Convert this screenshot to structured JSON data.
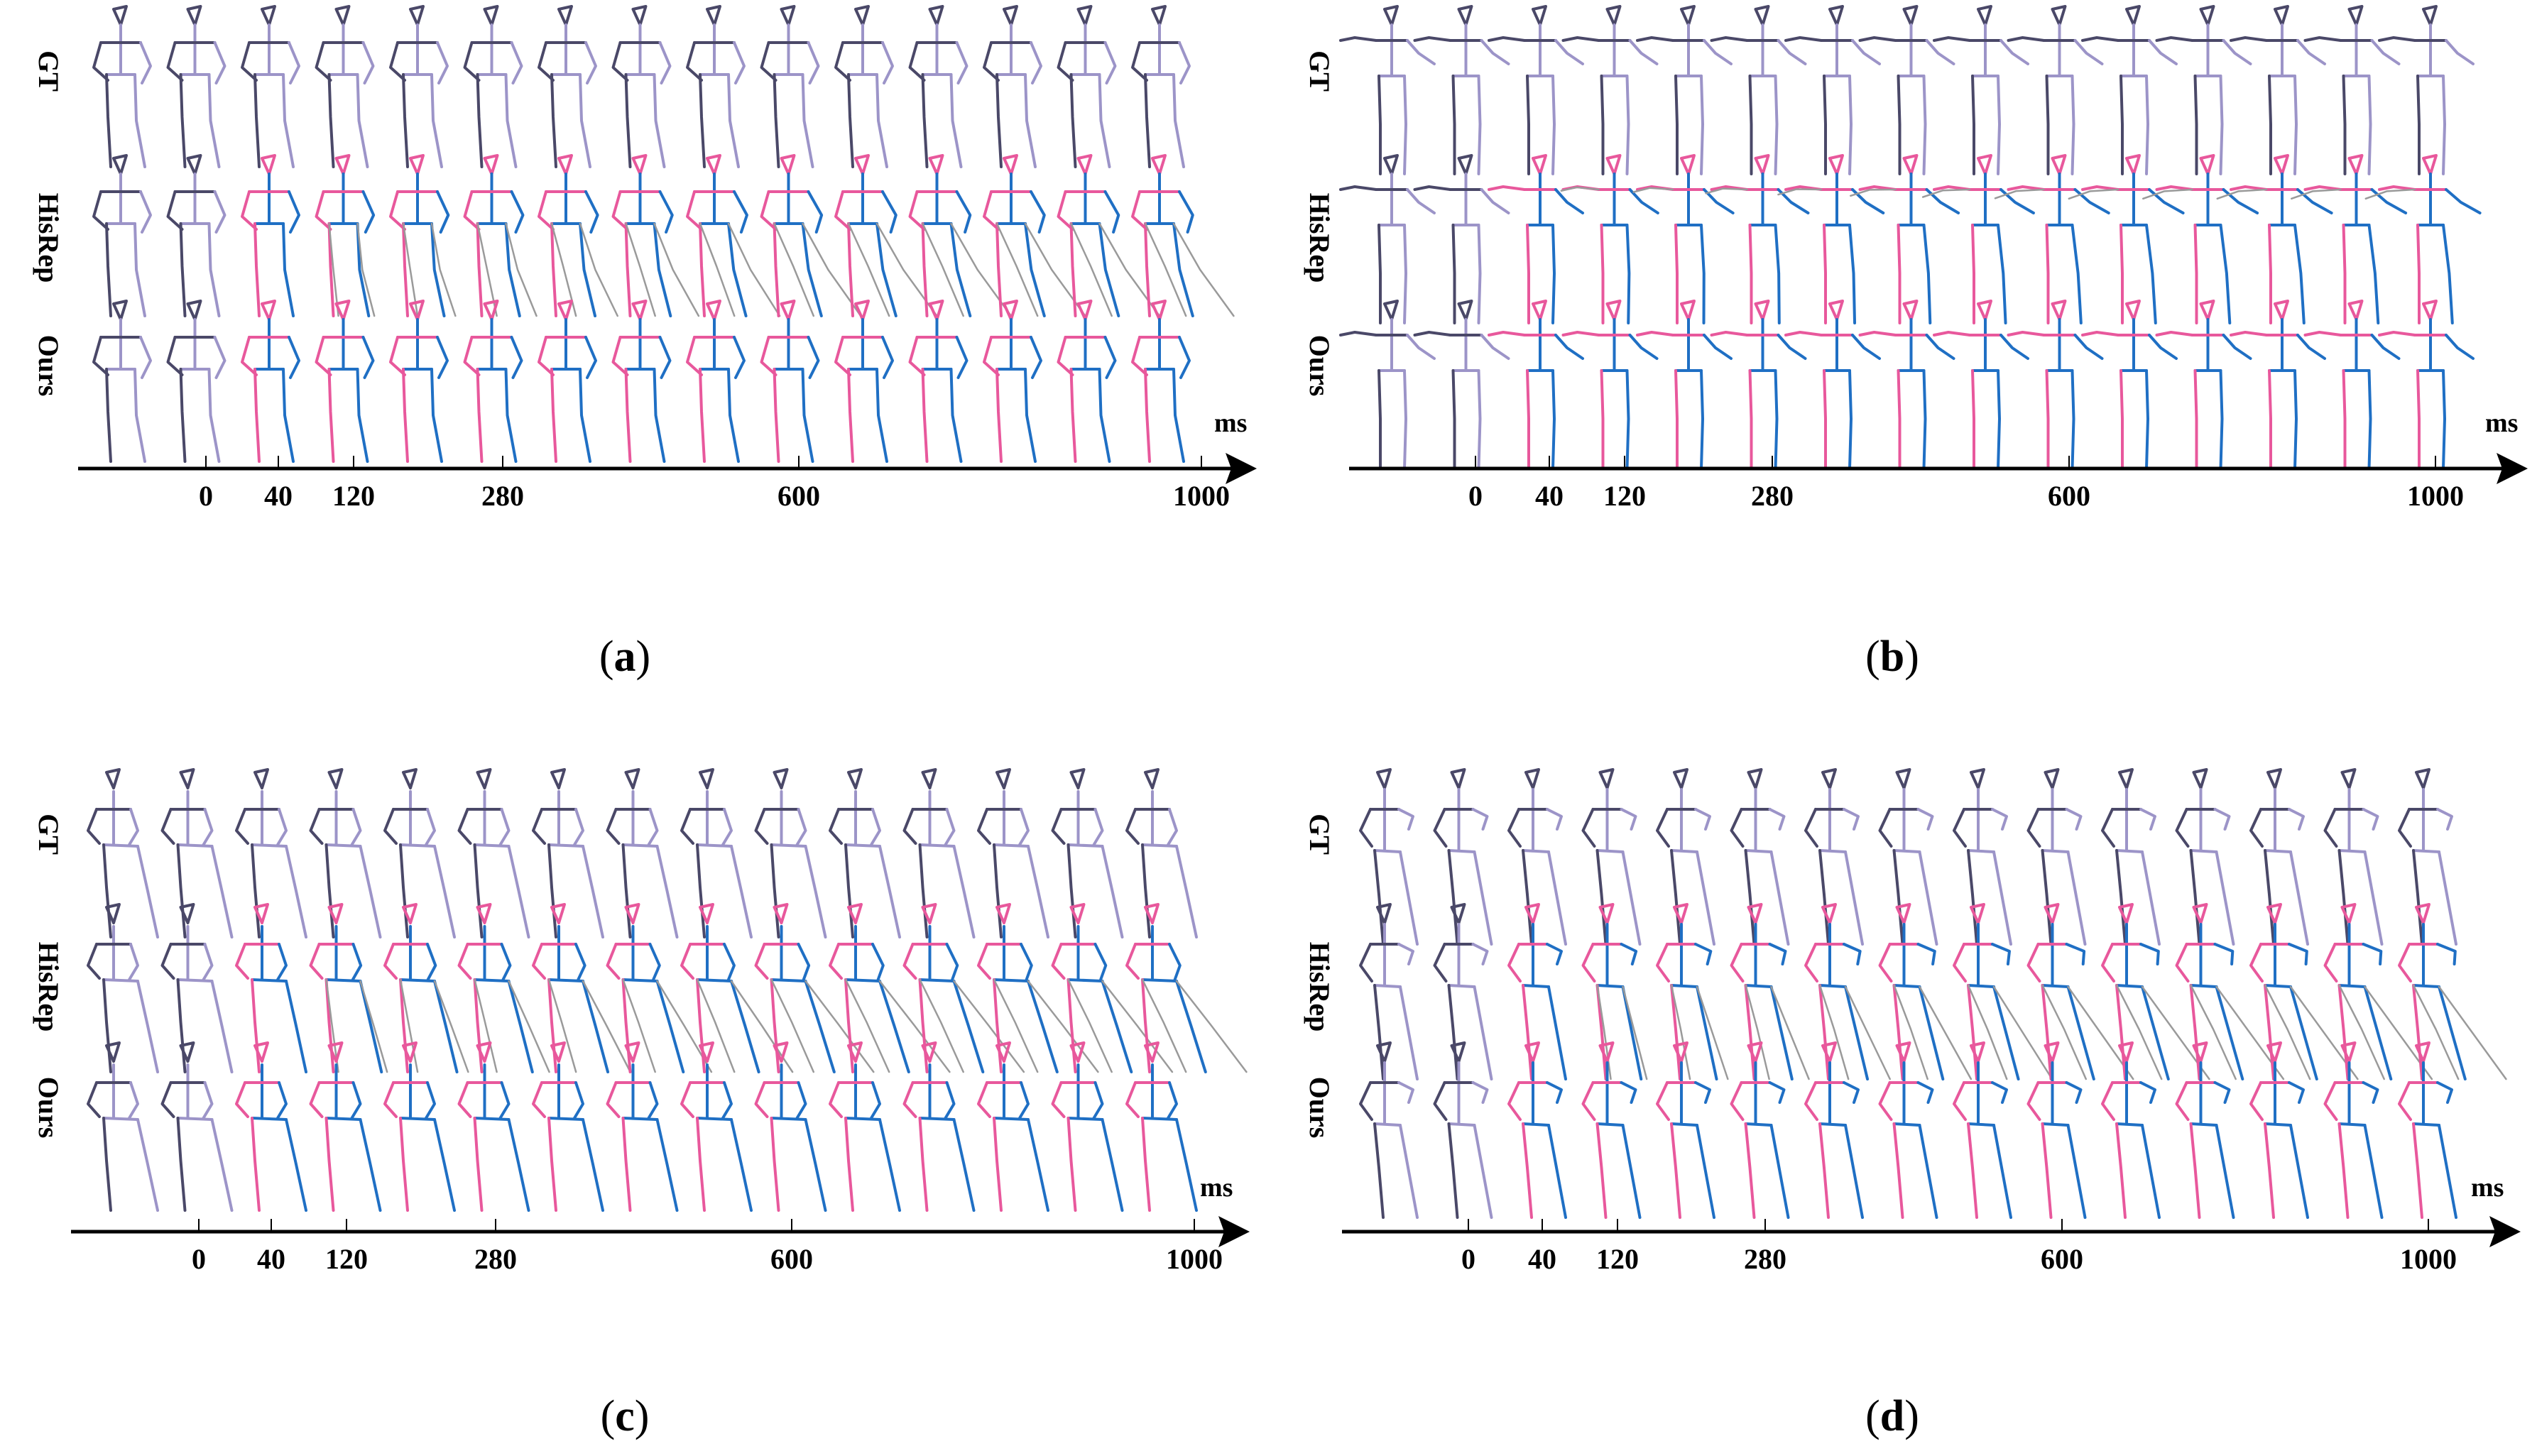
{
  "figure": {
    "row_labels": [
      "GT",
      "HisRep",
      "Ours"
    ],
    "time_unit": "ms",
    "tick_labels": [
      "0",
      "40",
      "120",
      "280",
      "600",
      "1000"
    ],
    "colors": {
      "observed": "#4a4868",
      "observed_light": "#9c94c8",
      "pred_left": "#e8589c",
      "pred_right": "#1f6fc4",
      "ghost": "#9a9a9a",
      "axis": "#000000"
    },
    "panels": [
      {
        "id": "a",
        "caption_open": "(",
        "caption_letter": "a",
        "caption_close": ")",
        "pose": "stand",
        "frames": 15,
        "observed_frames": 2,
        "hisrep_drift": "legs"
      },
      {
        "id": "b",
        "caption_open": "(",
        "caption_letter": "b",
        "caption_close": ")",
        "pose": "arms-out",
        "frames": 15,
        "observed_frames": 2,
        "hisrep_drift": "arm"
      },
      {
        "id": "c",
        "caption_open": "(",
        "caption_letter": "c",
        "caption_close": ")",
        "pose": "walk",
        "frames": 15,
        "observed_frames": 2,
        "hisrep_drift": "legs"
      },
      {
        "id": "d",
        "caption_open": "(",
        "caption_letter": "d",
        "caption_close": ")",
        "pose": "walk-arms",
        "frames": 15,
        "observed_frames": 2,
        "hisrep_drift": "legs"
      }
    ]
  }
}
